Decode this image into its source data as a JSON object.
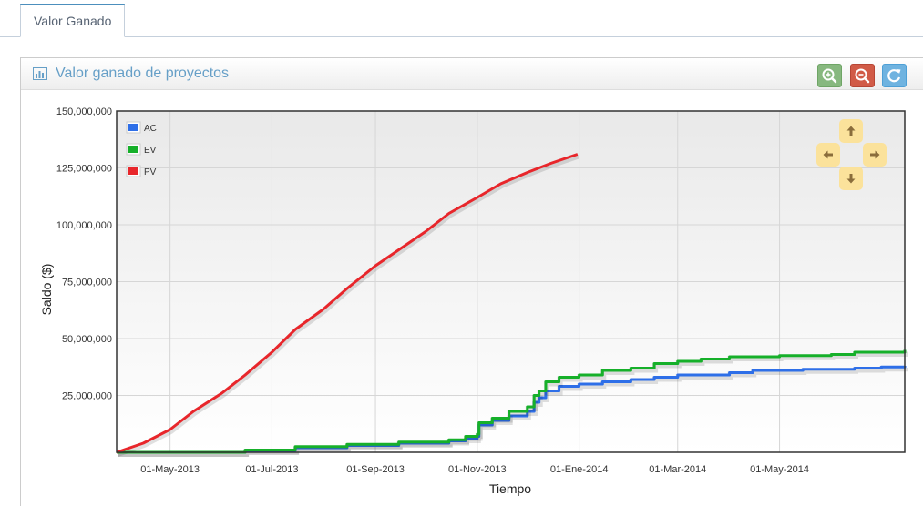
{
  "tabs": [
    {
      "label": "Valor Ganado"
    }
  ],
  "widget": {
    "title": "Valor ganado de proyectos"
  },
  "colors": {
    "AC": "#2e6fe8",
    "EV": "#16b02a",
    "PV": "#e8262b",
    "accent": "#669fc7"
  },
  "icons": {
    "title": "bar-chart-icon",
    "zoom_in": "zoom-in-icon",
    "zoom_out": "zoom-out-icon",
    "reset": "refresh-icon",
    "pan": [
      "arrow-up-icon",
      "arrow-left-icon",
      "arrow-right-icon",
      "arrow-down-icon"
    ]
  },
  "chart_data": {
    "type": "line",
    "xlabel": "Tiempo",
    "ylabel": "Saldo ($)",
    "xlim": [
      "2013-03-30",
      "2014-07-15"
    ],
    "ylim": [
      0,
      150000000
    ],
    "yticks": [
      25000000,
      50000000,
      75000000,
      100000000,
      125000000,
      150000000
    ],
    "ytick_labels": [
      "25,000,000",
      "50,000,000",
      "75,000,000",
      "100,000,000",
      "125,000,000",
      "150,000,000"
    ],
    "xticks": [
      "2013-05-01",
      "2013-07-01",
      "2013-09-01",
      "2013-11-01",
      "2014-01-01",
      "2014-03-01",
      "2014-05-01"
    ],
    "xtick_labels": [
      "01-May-2013",
      "01-Jul-2013",
      "01-Sep-2013",
      "01-Nov-2013",
      "01-Ene-2014",
      "01-Mar-2014",
      "01-May-2014"
    ],
    "grid": true,
    "legend_position": "top-left",
    "series": [
      {
        "name": "AC",
        "step": true,
        "points": [
          [
            "2013-03-30",
            0
          ],
          [
            "2013-05-15",
            0
          ],
          [
            "2013-06-15",
            800000
          ],
          [
            "2013-07-15",
            2000000
          ],
          [
            "2013-08-15",
            3000000
          ],
          [
            "2013-09-15",
            4000000
          ],
          [
            "2013-10-15",
            5000000
          ],
          [
            "2013-10-25",
            6000000
          ],
          [
            "2013-11-01",
            7000000
          ],
          [
            "2013-11-02",
            12000000
          ],
          [
            "2013-11-10",
            14000000
          ],
          [
            "2013-11-20",
            16000000
          ],
          [
            "2013-12-01",
            18000000
          ],
          [
            "2013-12-05",
            22000000
          ],
          [
            "2013-12-08",
            24000000
          ],
          [
            "2013-12-12",
            27000000
          ],
          [
            "2013-12-20",
            29000000
          ],
          [
            "2014-01-01",
            30000000
          ],
          [
            "2014-01-15",
            31000000
          ],
          [
            "2014-02-01",
            32000000
          ],
          [
            "2014-02-15",
            33000000
          ],
          [
            "2014-03-01",
            34000000
          ],
          [
            "2014-04-01",
            35000000
          ],
          [
            "2014-04-15",
            36000000
          ],
          [
            "2014-05-15",
            36500000
          ],
          [
            "2014-06-15",
            37000000
          ],
          [
            "2014-07-01",
            37500000
          ],
          [
            "2014-07-15",
            38000000
          ]
        ]
      },
      {
        "name": "EV",
        "step": true,
        "points": [
          [
            "2013-03-30",
            0
          ],
          [
            "2013-05-15",
            0
          ],
          [
            "2013-06-15",
            1000000
          ],
          [
            "2013-07-15",
            2500000
          ],
          [
            "2013-08-15",
            3500000
          ],
          [
            "2013-09-15",
            4500000
          ],
          [
            "2013-10-15",
            5500000
          ],
          [
            "2013-10-25",
            7000000
          ],
          [
            "2013-11-01",
            8000000
          ],
          [
            "2013-11-02",
            13000000
          ],
          [
            "2013-11-10",
            15000000
          ],
          [
            "2013-11-20",
            18000000
          ],
          [
            "2013-12-01",
            20000000
          ],
          [
            "2013-12-05",
            25000000
          ],
          [
            "2013-12-08",
            27000000
          ],
          [
            "2013-12-12",
            31000000
          ],
          [
            "2013-12-20",
            33000000
          ],
          [
            "2014-01-01",
            34000000
          ],
          [
            "2014-01-15",
            36000000
          ],
          [
            "2014-02-01",
            37000000
          ],
          [
            "2014-02-15",
            39000000
          ],
          [
            "2014-03-01",
            40000000
          ],
          [
            "2014-03-15",
            41000000
          ],
          [
            "2014-04-01",
            42000000
          ],
          [
            "2014-05-01",
            42500000
          ],
          [
            "2014-06-01",
            43000000
          ],
          [
            "2014-06-15",
            44000000
          ],
          [
            "2014-07-15",
            45000000
          ]
        ]
      },
      {
        "name": "PV",
        "step": false,
        "points": [
          [
            "2013-03-30",
            0
          ],
          [
            "2013-04-15",
            4000000
          ],
          [
            "2013-05-01",
            10000000
          ],
          [
            "2013-05-15",
            18000000
          ],
          [
            "2013-06-01",
            26000000
          ],
          [
            "2013-06-15",
            34000000
          ],
          [
            "2013-07-01",
            44000000
          ],
          [
            "2013-07-15",
            54000000
          ],
          [
            "2013-08-01",
            63000000
          ],
          [
            "2013-08-15",
            72000000
          ],
          [
            "2013-09-01",
            82000000
          ],
          [
            "2013-09-15",
            89000000
          ],
          [
            "2013-10-01",
            97000000
          ],
          [
            "2013-10-15",
            105000000
          ],
          [
            "2013-11-01",
            112000000
          ],
          [
            "2013-11-15",
            118000000
          ],
          [
            "2013-12-01",
            123000000
          ],
          [
            "2013-12-15",
            127000000
          ],
          [
            "2013-12-31",
            131000000
          ]
        ]
      }
    ]
  }
}
